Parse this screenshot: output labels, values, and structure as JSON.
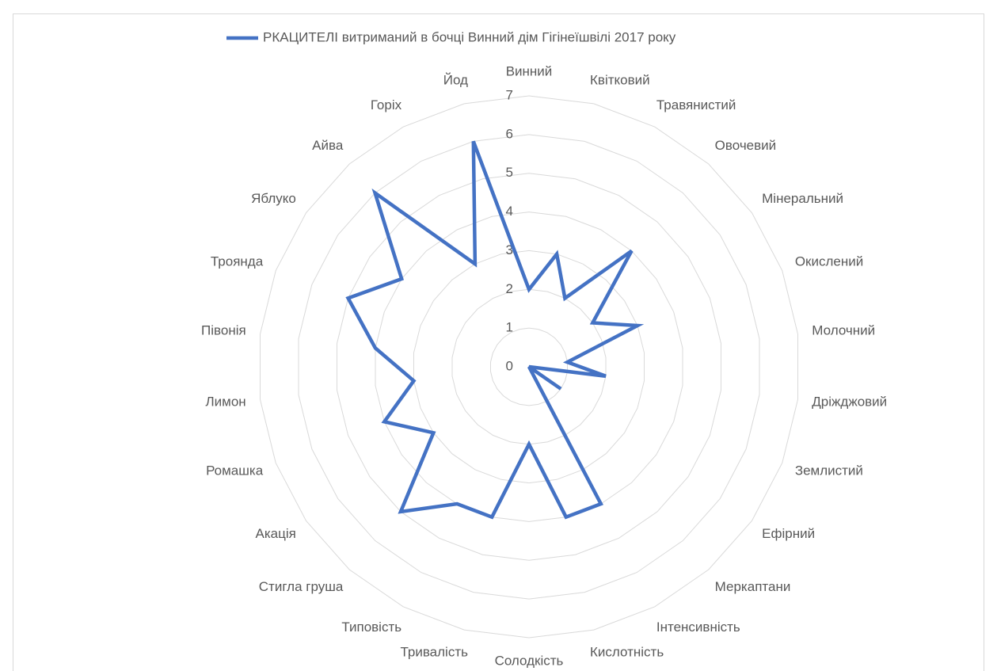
{
  "chart_data": {
    "type": "radar",
    "categories": [
      "Винний",
      "Квітковий",
      "Травянистий",
      "Овочевий",
      "Мінеральний",
      "Окислений",
      "Молочний",
      "Дріжджовий",
      "Землистий",
      "Ефірний",
      "Меркаптани",
      "Інтенсивність",
      "Кислотність",
      "Солодкість",
      "Тривалість",
      "Типовість",
      "Стигла груша",
      "Акація",
      "Ромашка",
      "Лимон",
      "Півонія",
      "Троянда",
      "Яблуко",
      "Айва",
      "Горіх",
      "Йод"
    ],
    "series": [
      {
        "name": "РКАЦИТЕЛІ витриманий в бочці Винний дім Гігінеїшвілі 2017 року",
        "color": "#4472c4",
        "values": [
          2,
          3,
          2,
          4,
          2,
          3,
          1,
          2,
          0,
          1,
          0,
          4,
          4,
          2,
          4,
          4,
          5,
          3,
          4,
          3,
          4,
          5,
          4,
          6,
          3,
          6
        ]
      }
    ],
    "rlim": [
      0,
      7
    ],
    "rticks": [
      0,
      1,
      2,
      3,
      4,
      5,
      6,
      7
    ],
    "grid": true,
    "legend": "top"
  }
}
